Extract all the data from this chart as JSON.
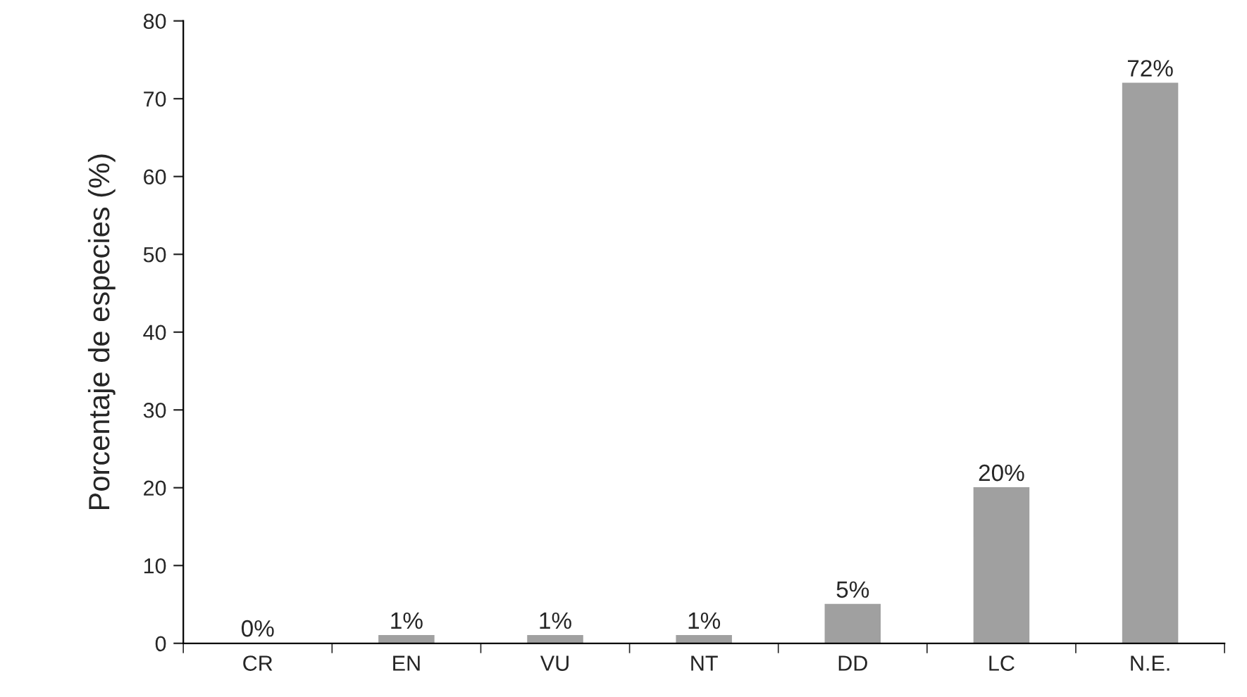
{
  "chart_data": {
    "type": "bar",
    "ylabel": "Porcentaje de especies (%)",
    "categories": [
      "CR",
      "EN",
      "VU",
      "NT",
      "DD",
      "LC",
      "N.E."
    ],
    "values": [
      0,
      1,
      1,
      1,
      5,
      20,
      72
    ],
    "value_labels": [
      "0%",
      "1%",
      "1%",
      "1%",
      "5%",
      "20%",
      "72%"
    ],
    "color": "#a0a0a0",
    "ylim": [
      0,
      80
    ],
    "yticks": [
      0,
      10,
      20,
      30,
      40,
      50,
      60,
      70,
      80
    ],
    "grid": false
  }
}
